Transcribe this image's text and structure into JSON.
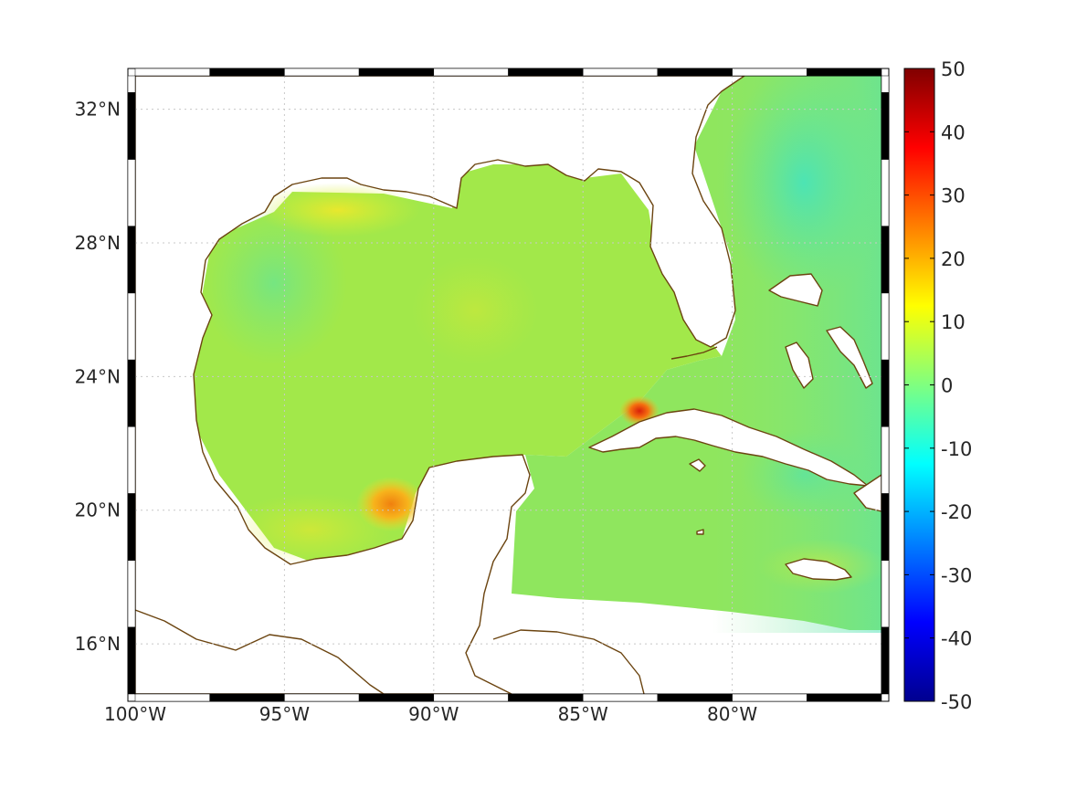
{
  "map": {
    "lon_range": [
      -100,
      -75
    ],
    "lat_range": [
      14.5,
      33
    ],
    "lon_ticks": [
      {
        "value": -100,
        "label": "100°W"
      },
      {
        "value": -95,
        "label": "95°W"
      },
      {
        "value": -90,
        "label": "90°W"
      },
      {
        "value": -85,
        "label": "85°W"
      },
      {
        "value": -80,
        "label": "80°W"
      }
    ],
    "lat_ticks": [
      {
        "value": 16,
        "label": "16°N"
      },
      {
        "value": 20,
        "label": "20°N"
      },
      {
        "value": 24,
        "label": "24°N"
      },
      {
        "value": 28,
        "label": "28°N"
      },
      {
        "value": 32,
        "label": "32°N"
      }
    ],
    "grid": true,
    "colors": {
      "coastline": "#6b4410",
      "ocean_base": "#9be64a",
      "gulf_tone": "#a6ea3e",
      "atlantic_tone": "#5fe6a0",
      "hotspot_cuba": "#e8420a",
      "hotspot_campeche": "#f39a18"
    }
  },
  "colorbar": {
    "colormap": "jet",
    "min": -50,
    "max": 50,
    "ticks": [
      {
        "value": 50,
        "label": "50"
      },
      {
        "value": 40,
        "label": "40"
      },
      {
        "value": 30,
        "label": "30"
      },
      {
        "value": 20,
        "label": "20"
      },
      {
        "value": 10,
        "label": "10"
      },
      {
        "value": 0,
        "label": "0"
      },
      {
        "value": -10,
        "label": "-10"
      },
      {
        "value": -20,
        "label": "-20"
      },
      {
        "value": -30,
        "label": "-30"
      },
      {
        "value": -40,
        "label": "-40"
      },
      {
        "value": -50,
        "label": "-50"
      }
    ]
  }
}
